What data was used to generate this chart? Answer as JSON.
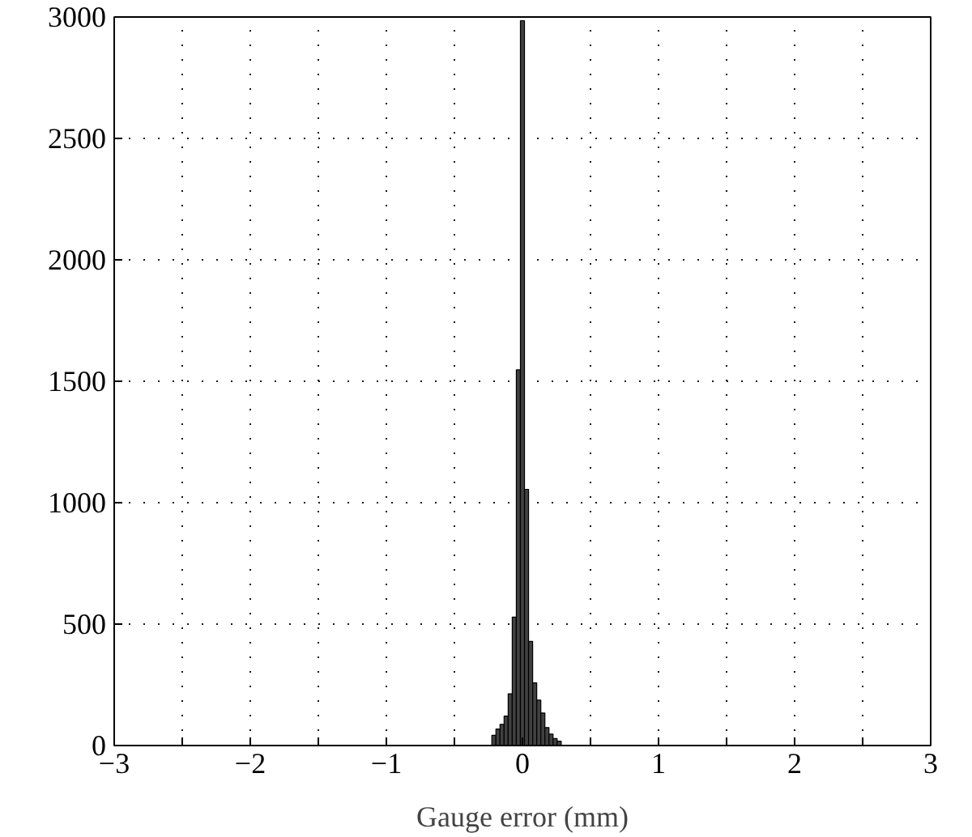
{
  "chart_data": {
    "type": "histogram",
    "xlabel": "Gauge error (mm)",
    "bins": [
      -0.225,
      -0.195,
      -0.165,
      -0.135,
      -0.105,
      -0.075,
      -0.045,
      -0.015,
      0.015,
      0.045,
      0.075,
      0.105,
      0.135,
      0.165,
      0.195,
      0.225,
      0.255,
      0.285
    ],
    "values": [
      42,
      68,
      87,
      121,
      213,
      529,
      1547,
      2985,
      1055,
      429,
      258,
      187,
      134,
      74,
      47,
      29,
      18
    ],
    "color": "#404040",
    "xlim": [
      -3,
      3
    ],
    "ylim": [
      0,
      3000
    ],
    "xticks": [
      {
        "value": -3,
        "label": "−3"
      },
      {
        "value": -2.5,
        "label": null
      },
      {
        "value": -2,
        "label": "−2"
      },
      {
        "value": -1.5,
        "label": null
      },
      {
        "value": -1,
        "label": "−1"
      },
      {
        "value": -0.5,
        "label": null
      },
      0,
      {
        "value": 0.5,
        "label": null
      },
      1,
      {
        "value": 1.5,
        "label": null
      },
      2,
      {
        "value": 2.5,
        "label": null
      },
      3
    ],
    "yticks": [
      0,
      500,
      1000,
      1500,
      2000,
      2500,
      3000
    ],
    "grid": true
  }
}
